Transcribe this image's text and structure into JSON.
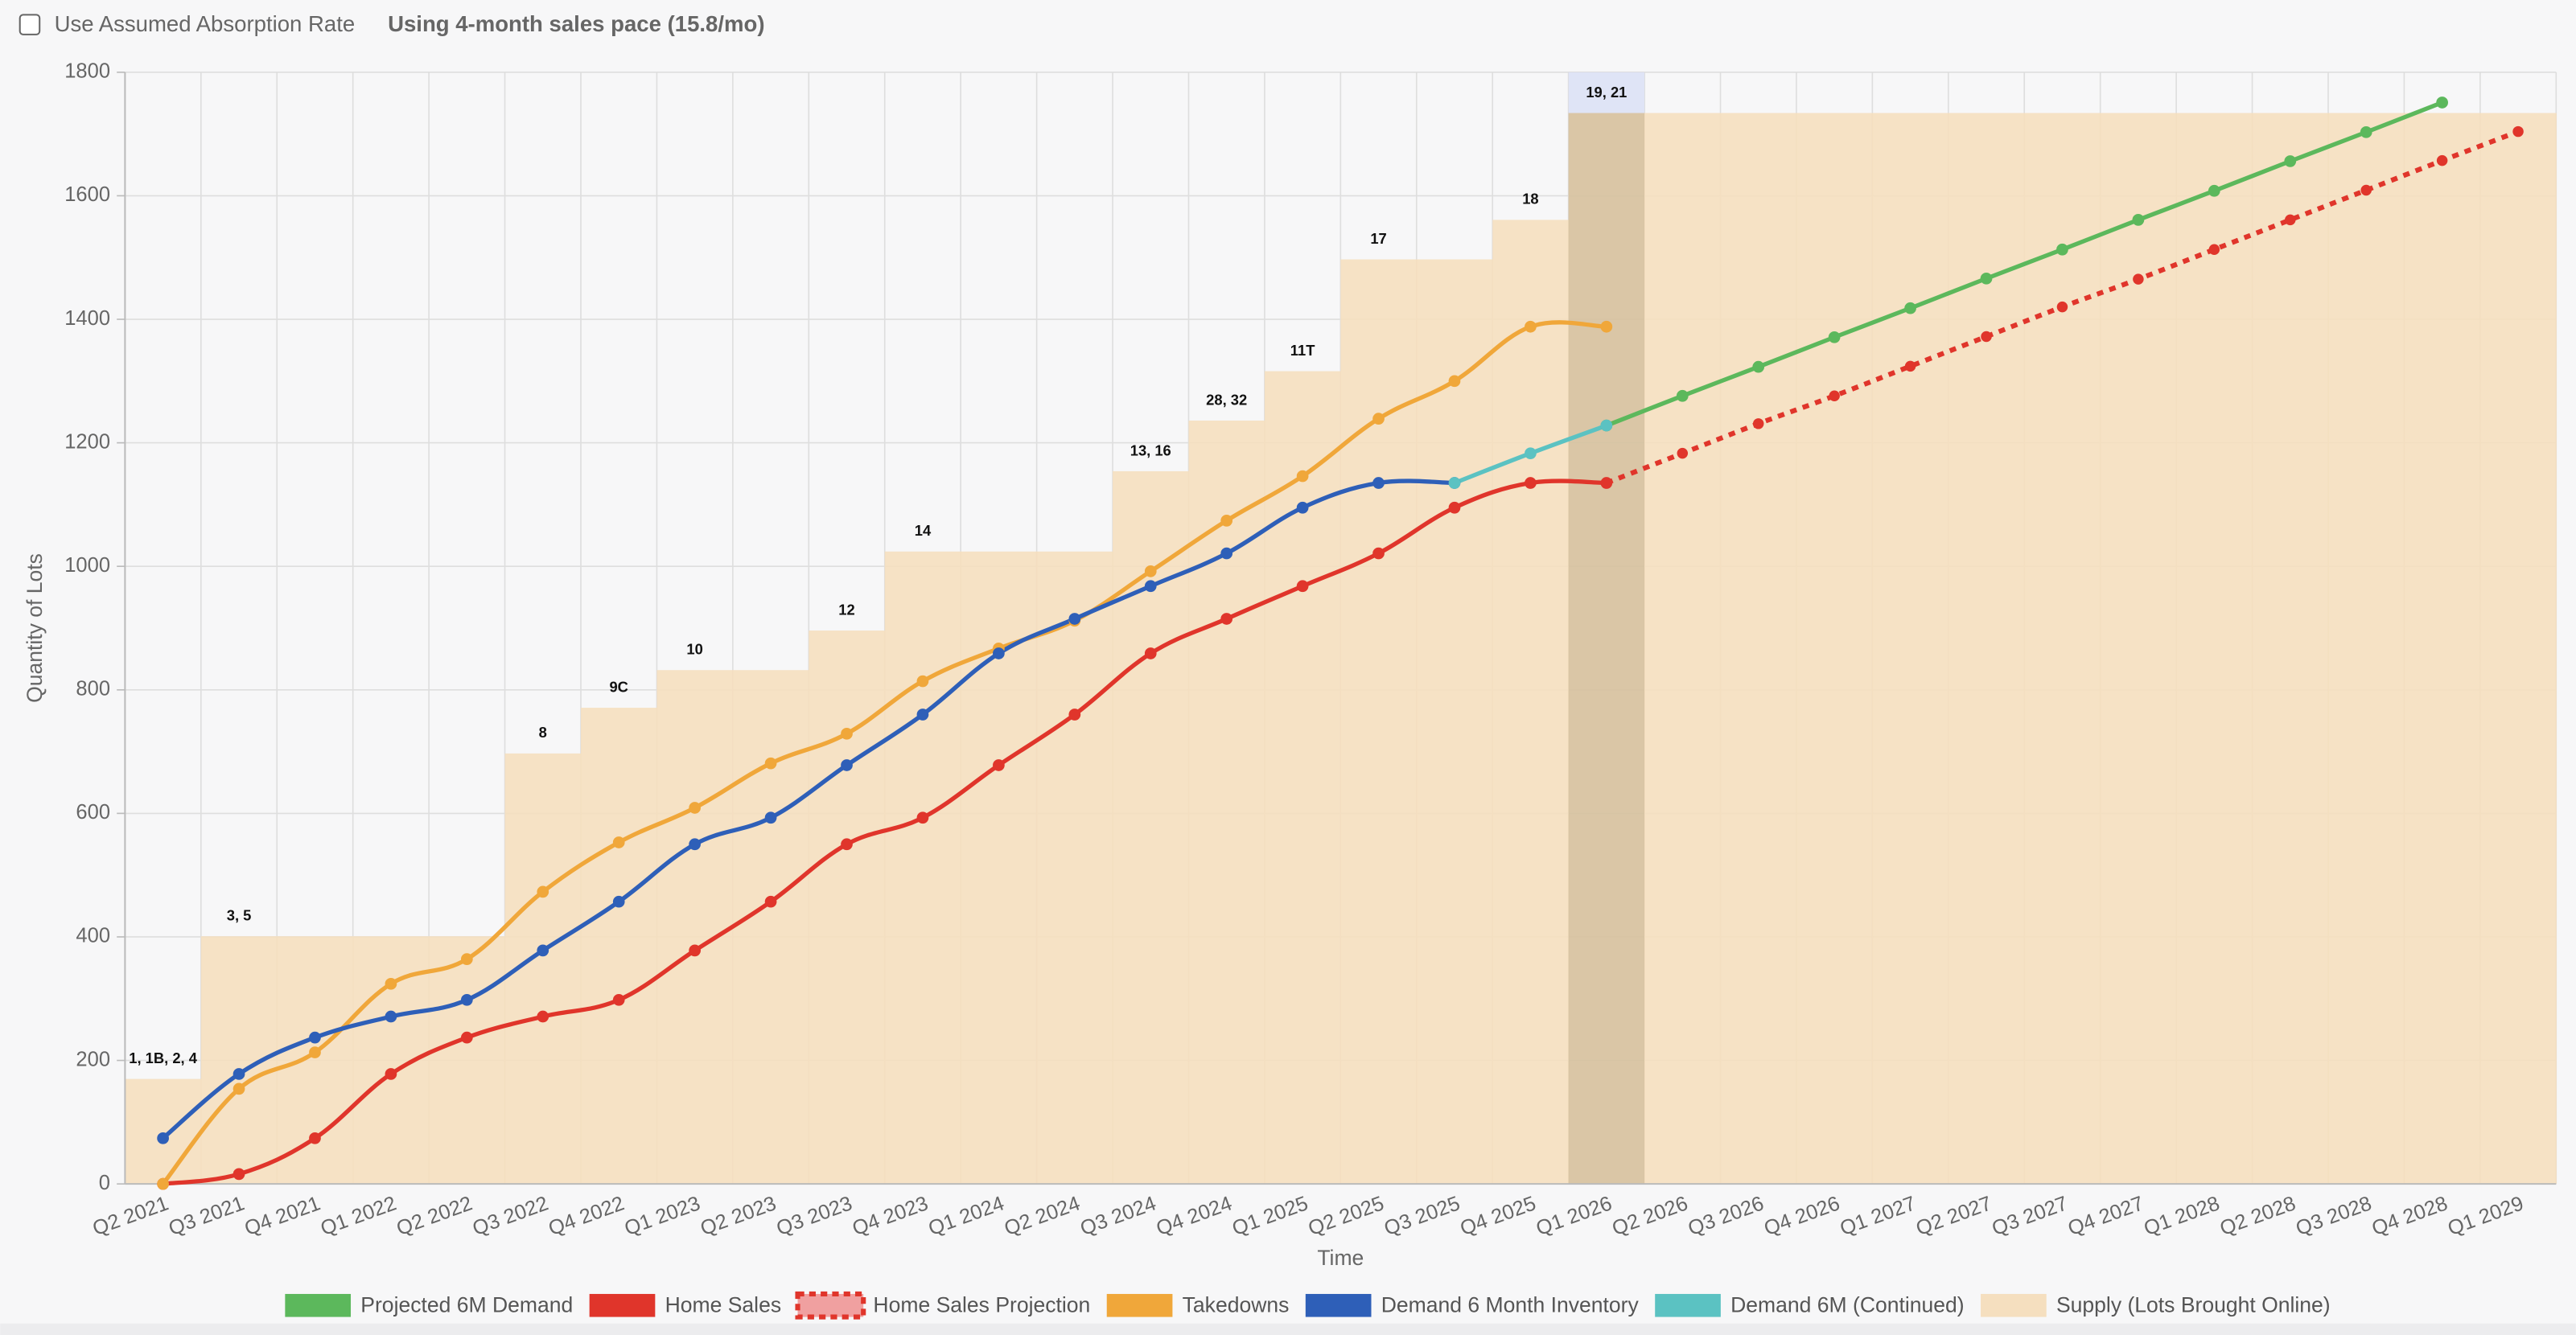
{
  "controls": {
    "checkbox_label": "Use Assumed Absorption Rate",
    "checked": false,
    "pace_text": "Using 4-month sales pace (15.8/mo)"
  },
  "chart_data": {
    "type": "line",
    "x_label": "Time",
    "y_label": "Quantity of Lots",
    "categories": [
      "Q2 2021",
      "Q3 2021",
      "Q4 2021",
      "Q1 2022",
      "Q2 2022",
      "Q3 2022",
      "Q4 2022",
      "Q1 2023",
      "Q2 2023",
      "Q3 2023",
      "Q4 2023",
      "Q1 2024",
      "Q2 2024",
      "Q3 2024",
      "Q4 2024",
      "Q1 2025",
      "Q2 2025",
      "Q3 2025",
      "Q4 2025",
      "Q1 2026",
      "Q2 2026",
      "Q3 2026",
      "Q4 2026",
      "Q1 2027",
      "Q2 2027",
      "Q3 2027",
      "Q4 2027",
      "Q1 2028",
      "Q2 2028",
      "Q3 2028",
      "Q4 2028",
      "Q1 2029"
    ],
    "ylim": [
      0,
      1800
    ],
    "yticks": [
      0,
      200,
      400,
      600,
      800,
      1000,
      1200,
      1400,
      1600,
      1800
    ],
    "grid": true,
    "legend": "bottom",
    "highlight": "Q1 2026",
    "series": [
      {
        "name": "Projected 6M Demand",
        "color": "#5cb85c",
        "style": "solid",
        "values": [
          null,
          null,
          null,
          null,
          null,
          null,
          null,
          null,
          null,
          null,
          null,
          null,
          null,
          null,
          null,
          null,
          null,
          null,
          null,
          1228,
          1276,
          1323,
          1371,
          1418,
          1466,
          1513,
          1561,
          1608,
          1656,
          1703,
          1751,
          null
        ]
      },
      {
        "name": "Home Sales",
        "color": "#e0352b",
        "style": "solid",
        "values": [
          0,
          16,
          74,
          178,
          237,
          271,
          298,
          378,
          457,
          550,
          593,
          678,
          760,
          859,
          915,
          968,
          1021,
          1095,
          1135,
          1135,
          null,
          null,
          null,
          null,
          null,
          null,
          null,
          null,
          null,
          null,
          null,
          null
        ]
      },
      {
        "name": "Home Sales Projection",
        "color": "#e0352b",
        "style": "dashed",
        "values": [
          null,
          null,
          null,
          null,
          null,
          null,
          null,
          null,
          null,
          null,
          null,
          null,
          null,
          null,
          null,
          null,
          null,
          null,
          null,
          1135,
          1183,
          1231,
          1276,
          1324,
          1372,
          1420,
          1465,
          1513,
          1561,
          1609,
          1657,
          1704
        ]
      },
      {
        "name": "Takedowns",
        "color": "#f0a73a",
        "style": "solid",
        "values": [
          0,
          154,
          213,
          324,
          364,
          473,
          553,
          609,
          681,
          729,
          814,
          867,
          912,
          992,
          1074,
          1146,
          1239,
          1300,
          1388,
          1388,
          null,
          null,
          null,
          null,
          null,
          null,
          null,
          null,
          null,
          null,
          null,
          null
        ]
      },
      {
        "name": "Demand 6 Month Inventory",
        "color": "#2e5fb8",
        "style": "solid",
        "values": [
          74,
          178,
          237,
          271,
          298,
          378,
          457,
          550,
          593,
          678,
          760,
          859,
          915,
          968,
          1021,
          1095,
          1135,
          1135,
          null,
          null,
          null,
          null,
          null,
          null,
          null,
          null,
          null,
          null,
          null,
          null,
          null,
          null
        ]
      },
      {
        "name": "Demand 6M (Continued)",
        "color": "#5bc2c2",
        "style": "solid",
        "values": [
          null,
          null,
          null,
          null,
          null,
          null,
          null,
          null,
          null,
          null,
          null,
          null,
          null,
          null,
          null,
          null,
          null,
          1135,
          1183,
          1228,
          null,
          null,
          null,
          null,
          null,
          null,
          null,
          null,
          null,
          null,
          null,
          null
        ]
      },
      {
        "name": "Supply (Lots Brought Online)",
        "color": "#f5dfbf",
        "style": "step",
        "values": [
          170,
          401,
          401,
          401,
          401,
          697,
          771,
          832,
          832,
          896,
          1024,
          1024,
          1024,
          1154,
          1236,
          1316,
          1497,
          1497,
          1561,
          1734,
          1734,
          1734,
          1734,
          1734,
          1734,
          1734,
          1734,
          1734,
          1734,
          1734,
          1734,
          1734
        ],
        "labels": [
          "1, 1B, 2, 4",
          "3, 5",
          null,
          null,
          null,
          "8",
          "9C",
          "10",
          null,
          "12",
          "14",
          null,
          null,
          "13, 16",
          "28, 32",
          "11T",
          "17",
          null,
          "18",
          "19, 21",
          null,
          null,
          null,
          null,
          null,
          null,
          null,
          null,
          null,
          null,
          null,
          null
        ]
      }
    ]
  }
}
